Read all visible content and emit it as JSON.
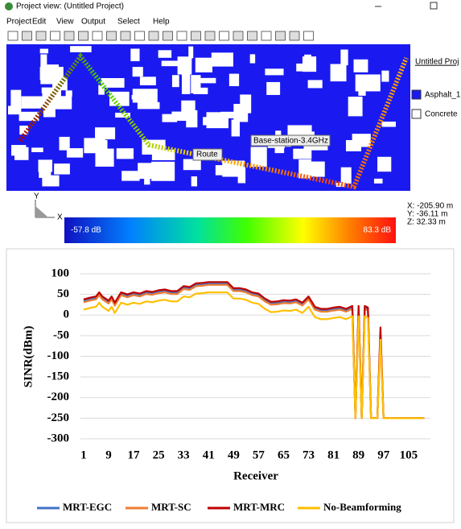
{
  "screenshot": {
    "window_title": "Project view: (Untitled Project)",
    "menu": [
      "Project",
      "Edit",
      "View",
      "Output",
      "Select",
      "Help"
    ],
    "side_title": "Untitled Proj",
    "materials": [
      "Asphalt_1",
      "Concrete"
    ],
    "labels": {
      "transmitter": "Base-station-3.4GHz",
      "route": "Route"
    },
    "axes": {
      "y": "Y",
      "x": "X"
    },
    "coordinates": [
      "X: -205.90 m",
      "Y: -36.11 m",
      "Z: 32.33 m"
    ],
    "colorbar": {
      "min": "-57.8 dB",
      "max": "83.3 dB"
    }
  },
  "chart_data": {
    "type": "line",
    "x_label": "Receiver",
    "y_label": "SINR(dBm)",
    "x": [
      1,
      3,
      5,
      6,
      7,
      9,
      10,
      11,
      13,
      15,
      17,
      19,
      21,
      23,
      25,
      27,
      29,
      31,
      33,
      35,
      37,
      39,
      41,
      43,
      45,
      47,
      49,
      51,
      53,
      55,
      57,
      59,
      61,
      63,
      65,
      67,
      69,
      71,
      73,
      75,
      77,
      79,
      81,
      83,
      85,
      87,
      88,
      89,
      90,
      91,
      92,
      93,
      95,
      96,
      97,
      99,
      110
    ],
    "series": [
      {
        "name": "MRT-EGC",
        "color": "#4472c4",
        "values": [
          34,
          38,
          41,
          51,
          41,
          31,
          41,
          26,
          51,
          46,
          51,
          48,
          54,
          52,
          56,
          58,
          54,
          54,
          66,
          64,
          73,
          74,
          76,
          76,
          76,
          76,
          61,
          61,
          58,
          51,
          48,
          36,
          28,
          29,
          32,
          31,
          34,
          26,
          41,
          16,
          11,
          11,
          14,
          16,
          11,
          18,
          -250,
          18,
          -250,
          18,
          14,
          -250,
          -250,
          -45,
          -250,
          -250,
          -250
        ]
      },
      {
        "name": "MRT-SC",
        "color": "#ed7d31",
        "values": [
          31,
          35,
          38,
          48,
          38,
          28,
          38,
          23,
          48,
          43,
          48,
          45,
          51,
          49,
          53,
          55,
          51,
          51,
          63,
          61,
          70,
          71,
          73,
          73,
          73,
          73,
          58,
          58,
          55,
          48,
          45,
          33,
          25,
          26,
          29,
          28,
          31,
          23,
          38,
          13,
          8,
          8,
          11,
          13,
          8,
          15,
          -250,
          15,
          -250,
          15,
          11,
          -250,
          -250,
          -50,
          -250,
          -250,
          -250
        ]
      },
      {
        "name": "MRT-MRC",
        "color": "#c00000",
        "values": [
          38,
          42,
          45,
          55,
          45,
          35,
          45,
          30,
          55,
          50,
          55,
          52,
          58,
          56,
          60,
          62,
          58,
          58,
          70,
          68,
          77,
          78,
          80,
          80,
          80,
          80,
          65,
          65,
          62,
          55,
          52,
          40,
          32,
          33,
          36,
          35,
          38,
          30,
          45,
          20,
          15,
          15,
          18,
          20,
          15,
          22,
          -250,
          22,
          -250,
          22,
          18,
          -250,
          -250,
          -30,
          -250,
          -250,
          -250
        ]
      },
      {
        "name": "No-Beamforming",
        "color": "#ffc000",
        "values": [
          13,
          17,
          20,
          30,
          20,
          10,
          20,
          5,
          30,
          25,
          30,
          27,
          33,
          31,
          35,
          37,
          33,
          33,
          45,
          43,
          52,
          53,
          55,
          55,
          55,
          55,
          40,
          40,
          37,
          30,
          27,
          15,
          7,
          8,
          11,
          10,
          13,
          5,
          20,
          -5,
          -10,
          -10,
          -7,
          -5,
          -10,
          -3,
          -250,
          -3,
          -250,
          -3,
          -7,
          -250,
          -250,
          -60,
          -250,
          -250,
          -250
        ]
      }
    ],
    "xlim": [
      0,
      112
    ],
    "xticks": [
      1,
      9,
      17,
      25,
      33,
      41,
      49,
      57,
      65,
      73,
      81,
      89,
      97,
      105
    ],
    "ylim": [
      -300,
      100
    ],
    "yticks": [
      -300,
      -250,
      -200,
      -150,
      -100,
      -50,
      0,
      50,
      100
    ],
    "grid": true,
    "legend": "bottom"
  }
}
